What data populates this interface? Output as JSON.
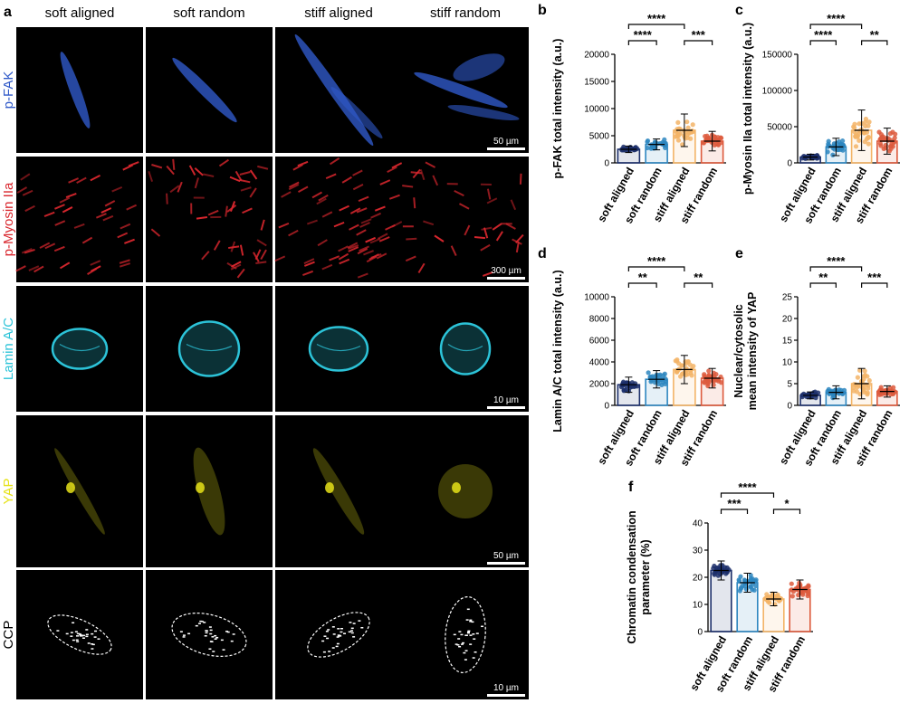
{
  "colors": {
    "soft_aligned": "#1c2f6b",
    "soft_random": "#2d86c0",
    "stiff_aligned": "#f3b467",
    "stiff_random": "#dd5a3d",
    "pfak": "#2f59c8",
    "myosin": "#d9272e",
    "lamin": "#2cc3d8",
    "yap": "#e6e219",
    "ccp": "#ffffff"
  },
  "micrographs": {
    "panel_letter": "a",
    "columns": [
      "soft aligned",
      "soft random",
      "stiff aligned",
      "stiff random"
    ],
    "rows": [
      {
        "label": "p-FAK",
        "color": "#2f59c8",
        "scale_bar": "50 µm"
      },
      {
        "label": "p-Myosin IIa",
        "color": "#d9272e",
        "scale_bar": "300 µm"
      },
      {
        "label": "Lamin A/C",
        "color": "#2cc3d8",
        "scale_bar": "10 µm"
      },
      {
        "label": "YAP",
        "color": "#e6e219",
        "scale_bar": "50 µm"
      },
      {
        "label": "CCP",
        "color": "#000000",
        "scale_bar": "10 µm"
      }
    ]
  },
  "chart_data": [
    {
      "panel": "b",
      "type": "bar",
      "categories": [
        "soft aligned",
        "soft random",
        "stiff aligned",
        "stiff random"
      ],
      "values": [
        2500,
        3400,
        6000,
        4000
      ],
      "error": [
        600,
        1000,
        3000,
        1800
      ],
      "ylabel": "p-FAK total intensity (a.u.)",
      "ylim": [
        0,
        20000
      ],
      "yticks": [
        "0",
        "5000",
        "10000",
        "15000",
        "20000"
      ],
      "significance": [
        {
          "pair": [
            0,
            2
          ],
          "label": "****"
        },
        {
          "pair": [
            0,
            1
          ],
          "label": "****"
        },
        {
          "pair": [
            2,
            3
          ],
          "label": "***"
        }
      ]
    },
    {
      "panel": "c",
      "type": "bar",
      "categories": [
        "soft aligned",
        "soft random",
        "stiff aligned",
        "stiff random"
      ],
      "values": [
        8000,
        22000,
        45000,
        30000
      ],
      "error": [
        4000,
        12000,
        28000,
        18000
      ],
      "ylabel": "p-Myosin IIa total intensity (a.u.)",
      "ylim": [
        0,
        150000
      ],
      "yticks": [
        "0",
        "50000",
        "100000",
        "150000"
      ],
      "significance": [
        {
          "pair": [
            0,
            2
          ],
          "label": "****"
        },
        {
          "pair": [
            0,
            1
          ],
          "label": "****"
        },
        {
          "pair": [
            2,
            3
          ],
          "label": "**"
        }
      ]
    },
    {
      "panel": "d",
      "type": "bar",
      "categories": [
        "soft aligned",
        "soft random",
        "stiff aligned",
        "stiff random"
      ],
      "values": [
        1900,
        2400,
        3300,
        2500
      ],
      "error": [
        700,
        800,
        1300,
        900
      ],
      "ylabel": "Lamin A/C total intensity (a.u.)",
      "ylim": [
        0,
        10000
      ],
      "yticks": [
        "0",
        "2000",
        "4000",
        "6000",
        "8000",
        "10000"
      ],
      "significance": [
        {
          "pair": [
            0,
            2
          ],
          "label": "****"
        },
        {
          "pair": [
            0,
            1
          ],
          "label": "**"
        },
        {
          "pair": [
            2,
            3
          ],
          "label": "**"
        }
      ]
    },
    {
      "panel": "e",
      "type": "bar",
      "categories": [
        "soft aligned",
        "soft random",
        "stiff aligned",
        "stiff random"
      ],
      "values": [
        2.3,
        3.0,
        5.0,
        3.2
      ],
      "error": [
        0.8,
        1.5,
        3.5,
        1.3
      ],
      "ylabel": "Nuclear/cytosolic mean intensity of YAP",
      "ylim": [
        0,
        25
      ],
      "yticks": [
        "0",
        "5",
        "10",
        "15",
        "20",
        "25"
      ],
      "significance": [
        {
          "pair": [
            0,
            2
          ],
          "label": "****"
        },
        {
          "pair": [
            0,
            1
          ],
          "label": "**"
        },
        {
          "pair": [
            2,
            3
          ],
          "label": "***"
        }
      ]
    },
    {
      "panel": "f",
      "type": "bar",
      "categories": [
        "soft aligned",
        "soft random",
        "stiff aligned",
        "stiff random"
      ],
      "values": [
        22.5,
        18,
        12,
        15.5
      ],
      "error": [
        3.5,
        3.5,
        2.5,
        3.5
      ],
      "ylabel": "Chromatin condensation parameter (%)",
      "ylim": [
        0,
        40
      ],
      "yticks": [
        "0",
        "10",
        "20",
        "30",
        "40"
      ],
      "significance": [
        {
          "pair": [
            0,
            2
          ],
          "label": "****"
        },
        {
          "pair": [
            0,
            1
          ],
          "label": "***"
        },
        {
          "pair": [
            2,
            3
          ],
          "label": "*"
        }
      ]
    }
  ]
}
